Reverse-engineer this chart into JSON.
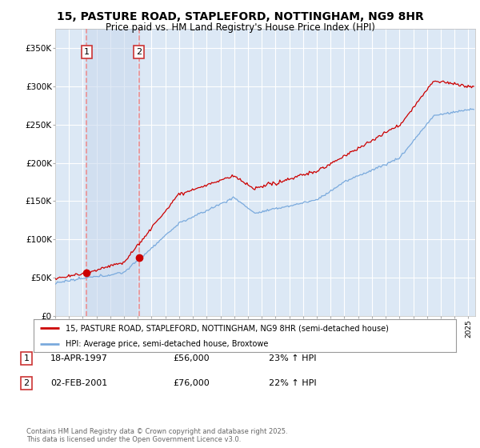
{
  "title1": "15, PASTURE ROAD, STAPLEFORD, NOTTINGHAM, NG9 8HR",
  "title2": "Price paid vs. HM Land Registry's House Price Index (HPI)",
  "background_color": "#ffffff",
  "plot_bg_color": "#dce8f5",
  "grid_color": "#ffffff",
  "sale1_date": 1997.29,
  "sale1_price": 56000,
  "sale2_date": 2001.09,
  "sale2_price": 76000,
  "ylim": [
    0,
    375000
  ],
  "xlim_start": 1995.0,
  "xlim_end": 2025.5,
  "legend_line1": "15, PASTURE ROAD, STAPLEFORD, NOTTINGHAM, NG9 8HR (semi-detached house)",
  "legend_line2": "HPI: Average price, semi-detached house, Broxtowe",
  "annot1_date": "18-APR-1997",
  "annot1_price": "£56,000",
  "annot1_hpi": "23% ↑ HPI",
  "annot2_date": "02-FEB-2001",
  "annot2_price": "£76,000",
  "annot2_hpi": "22% ↑ HPI",
  "footer": "Contains HM Land Registry data © Crown copyright and database right 2025.\nThis data is licensed under the Open Government Licence v3.0.",
  "red_line_color": "#cc0000",
  "blue_line_color": "#7aaadd",
  "vline_color": "#ee8888",
  "marker_color": "#cc0000",
  "shade_color": "#c8d8ed"
}
